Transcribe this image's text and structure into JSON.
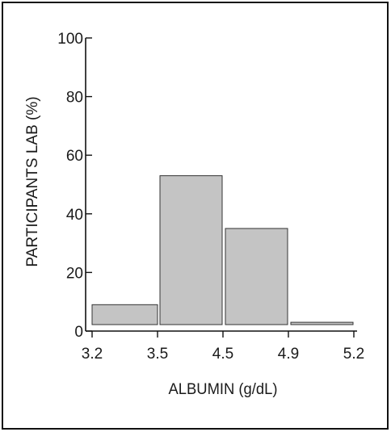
{
  "chart_data": {
    "type": "bar",
    "title": "",
    "xlabel": "ALBUMIN (g/dL)",
    "ylabel": "PARTICIPANTS LAB (%)",
    "bin_edges": [
      3.2,
      3.5,
      4.5,
      4.9,
      5.2
    ],
    "x_tick_labels": [
      "3.2",
      "3.5",
      "4.5",
      "4.9",
      "5.2"
    ],
    "categories": [
      "3.2–3.5",
      "3.5–4.5",
      "4.5–4.9",
      "4.9–5.2"
    ],
    "values": [
      9,
      53,
      35,
      3
    ],
    "ylim": [
      0,
      100
    ],
    "y_ticks": [
      0,
      20,
      40,
      60,
      80,
      100
    ],
    "y_tick_labels": [
      "0",
      "20",
      "40",
      "60",
      "80",
      "100"
    ],
    "grid": false,
    "legend": "none",
    "bar_color": "#c4c4c4"
  }
}
